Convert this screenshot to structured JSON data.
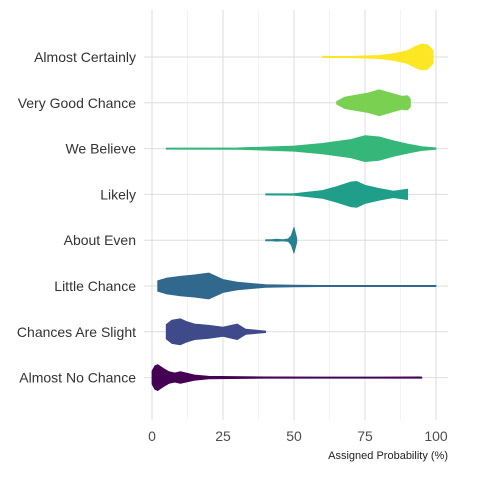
{
  "chart_data": {
    "type": "violin",
    "orientation": "horizontal",
    "xlabel": "Assigned Probability (%)",
    "xlim": [
      0,
      100
    ],
    "xticks": [
      0,
      25,
      50,
      75,
      100
    ],
    "grid": true,
    "legend": "none",
    "categories": [
      {
        "name": "Almost Certainly",
        "color": "#fde725",
        "range": [
          60,
          99
        ],
        "density": [
          [
            60,
            0.03
          ],
          [
            70,
            0.05
          ],
          [
            80,
            0.12
          ],
          [
            85,
            0.25
          ],
          [
            90,
            0.5
          ],
          [
            93,
            0.85
          ],
          [
            95,
            1.0
          ],
          [
            97,
            0.95
          ],
          [
            99,
            0.5
          ]
        ]
      },
      {
        "name": "Very Good Chance",
        "color": "#7ad151",
        "range": [
          65,
          91
        ],
        "density": [
          [
            65,
            0.1
          ],
          [
            68,
            0.45
          ],
          [
            72,
            0.6
          ],
          [
            76,
            0.75
          ],
          [
            80,
            1.0
          ],
          [
            84,
            0.75
          ],
          [
            88,
            0.5
          ],
          [
            90,
            0.55
          ],
          [
            91,
            0.3
          ]
        ]
      },
      {
        "name": "We Believe",
        "color": "#35b779",
        "range": [
          5,
          100
        ],
        "density": [
          [
            5,
            0.02
          ],
          [
            30,
            0.05
          ],
          [
            50,
            0.2
          ],
          [
            60,
            0.4
          ],
          [
            70,
            0.7
          ],
          [
            75,
            1.0
          ],
          [
            80,
            0.9
          ],
          [
            85,
            0.6
          ],
          [
            90,
            0.35
          ],
          [
            95,
            0.15
          ],
          [
            100,
            0.05
          ]
        ]
      },
      {
        "name": "Likely",
        "color": "#1f9e89",
        "range": [
          40,
          90
        ],
        "density": [
          [
            40,
            0.02
          ],
          [
            50,
            0.06
          ],
          [
            60,
            0.3
          ],
          [
            65,
            0.6
          ],
          [
            70,
            0.95
          ],
          [
            72,
            1.0
          ],
          [
            75,
            0.7
          ],
          [
            80,
            0.45
          ],
          [
            85,
            0.25
          ],
          [
            90,
            0.4
          ]
        ]
      },
      {
        "name": "About Even",
        "color": "#26828e",
        "range": [
          40,
          51
        ],
        "density": [
          [
            40,
            0.02
          ],
          [
            42,
            0.03
          ],
          [
            44,
            0.08
          ],
          [
            46,
            0.04
          ],
          [
            48,
            0.1
          ],
          [
            49,
            0.35
          ],
          [
            50,
            1.0
          ],
          [
            51,
            0.15
          ]
        ]
      },
      {
        "name": "Little Chance",
        "color": "#31688e",
        "range": [
          2,
          100
        ],
        "density": [
          [
            2,
            0.4
          ],
          [
            5,
            0.6
          ],
          [
            10,
            0.75
          ],
          [
            15,
            0.85
          ],
          [
            20,
            1.0
          ],
          [
            25,
            0.5
          ],
          [
            30,
            0.3
          ],
          [
            40,
            0.1
          ],
          [
            50,
            0.06
          ],
          [
            60,
            0.03
          ],
          [
            100,
            0.02
          ]
        ]
      },
      {
        "name": "Chances Are Slight",
        "color": "#3e4a89",
        "range": [
          5,
          40
        ],
        "density": [
          [
            5,
            0.55
          ],
          [
            7,
            0.9
          ],
          [
            10,
            1.0
          ],
          [
            12,
            0.8
          ],
          [
            15,
            0.6
          ],
          [
            20,
            0.5
          ],
          [
            25,
            0.35
          ],
          [
            30,
            0.6
          ],
          [
            33,
            0.2
          ],
          [
            38,
            0.1
          ],
          [
            40,
            0.06
          ]
        ]
      },
      {
        "name": "Almost No Chance",
        "color": "#440154",
        "range": [
          0,
          95
        ],
        "density": [
          [
            0,
            0.5
          ],
          [
            1,
            0.9
          ],
          [
            2,
            1.0
          ],
          [
            4,
            0.7
          ],
          [
            6,
            0.45
          ],
          [
            8,
            0.35
          ],
          [
            10,
            0.45
          ],
          [
            15,
            0.2
          ],
          [
            20,
            0.1
          ],
          [
            40,
            0.05
          ],
          [
            60,
            0.04
          ],
          [
            80,
            0.04
          ],
          [
            94,
            0.05
          ],
          [
            95,
            0.02
          ]
        ]
      }
    ]
  }
}
